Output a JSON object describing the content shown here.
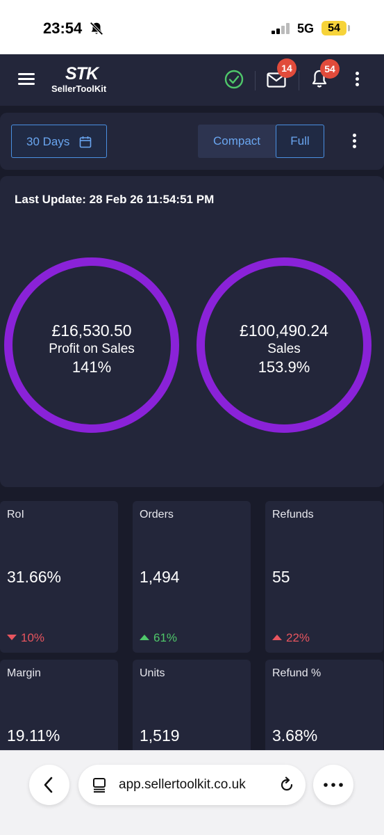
{
  "status_bar": {
    "time": "23:54",
    "network": "5G",
    "battery": "54"
  },
  "header": {
    "logo_mark": "STK",
    "logo_text": "SellerToolKit",
    "mail_count": "14",
    "notification_count": "54",
    "status_color": "#4fc76a"
  },
  "toolbar": {
    "range_label": "30 Days",
    "view_compact": "Compact",
    "view_full": "Full",
    "selected_view": "Full"
  },
  "summary": {
    "last_update": "Last Update: 28 Feb 26 11:54:51 PM",
    "rings": [
      {
        "value": "£16,530.50",
        "label": "Profit on Sales",
        "percent": "141%"
      },
      {
        "value": "£100,490.24",
        "label": "Sales",
        "percent": "153.9%"
      }
    ],
    "ring_color": "#8a22d8"
  },
  "metrics": [
    {
      "title": "RoI",
      "value": "31.66%",
      "change": "10%",
      "direction": "down",
      "change_color": "#e8555f"
    },
    {
      "title": "Orders",
      "value": "1,494",
      "change": "61%",
      "direction": "up",
      "change_color": "#4fc76a"
    },
    {
      "title": "Refunds",
      "value": "55",
      "change": "22%",
      "direction": "up",
      "change_color": "#e8555f"
    },
    {
      "title": "Margin",
      "value": "19.11%"
    },
    {
      "title": "Units",
      "value": "1,519"
    },
    {
      "title": "Refund %",
      "value": "3.68%"
    }
  ],
  "browser": {
    "url": "app.sellertoolkit.co.uk"
  }
}
